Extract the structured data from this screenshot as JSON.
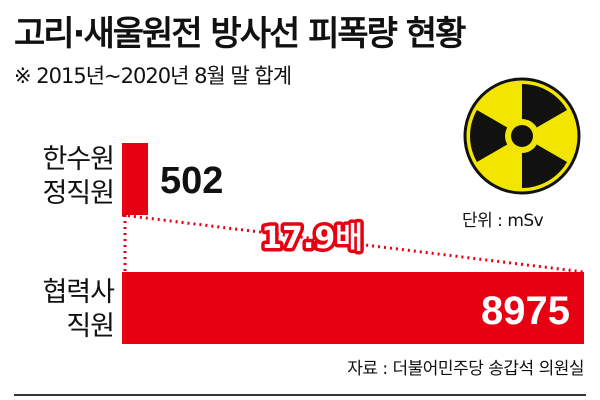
{
  "header": {
    "title": "고리·새울원전 방사선 피폭량 현황",
    "subtitle": "※ 2015년~2020년 8월 말 합계"
  },
  "unit_label": "단위 : mSv",
  "source": "자료 : 더불어민주당 송갑석 의원실",
  "icon": "radiation-trefoil-icon",
  "colors": {
    "bar": "#e60012",
    "icon_bg": "#f2e600",
    "icon_fg": "#111111",
    "ratio_text": "#ffffff"
  },
  "chart_data": {
    "type": "bar",
    "orientation": "horizontal",
    "categories": [
      [
        "한수원",
        "정직원"
      ],
      [
        "협력사",
        "직원"
      ]
    ],
    "values": [
      502,
      8975
    ],
    "value_labels": [
      "502",
      "8975"
    ],
    "ratio_label": "17.9배",
    "title": "고리·새울원전 방사선 피폭량 현황",
    "unit": "mSv",
    "xlim": [
      0,
      8975
    ],
    "grid": false,
    "legend": "none"
  }
}
